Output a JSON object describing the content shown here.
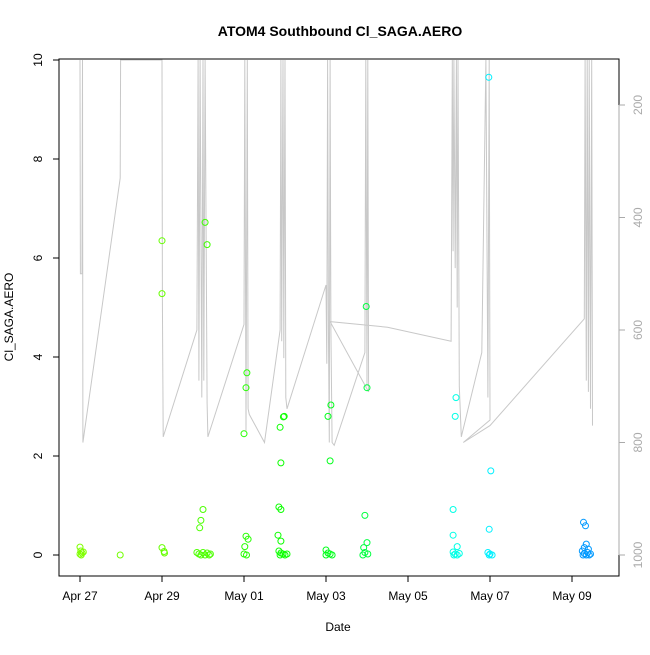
{
  "chart_data": {
    "type": "scatter",
    "title": "ATOM4 Southbound Cl_SAGA.AERO",
    "xlabel": "Date",
    "ylabel": "Cl_SAGA.AERO",
    "x_ticks": [
      "Apr 27",
      "Apr 29",
      "May 01",
      "May 03",
      "May 05",
      "May 07",
      "May 09"
    ],
    "y_ticks": [
      "0",
      "2",
      "4",
      "6",
      "8",
      "10"
    ],
    "y2_ticks": [
      "200",
      "400",
      "600",
      "800",
      "1000"
    ],
    "xlim": [
      "2018-04-26 12:00",
      "2018-05-10 05:00"
    ],
    "ylim": [
      0,
      10
    ],
    "y2lim_reversed": [
      120,
      1000
    ],
    "x_units": "days since 2018-04-27 00:00",
    "series": [
      {
        "name": "Cl_SAGA.AERO",
        "points": [
          {
            "x": 0.0,
            "y": 0.16,
            "c": "#7fff00"
          },
          {
            "x": 0.02,
            "y": 0.08,
            "c": "#7fff00"
          },
          {
            "x": 0.05,
            "y": 0.04,
            "c": "#7fff00"
          },
          {
            "x": 0.0,
            "y": 0.02,
            "c": "#7fff00"
          },
          {
            "x": 0.08,
            "y": 0.06,
            "c": "#7fff00"
          },
          {
            "x": 0.03,
            "y": 0.0,
            "c": "#7fff00"
          },
          {
            "x": 0.98,
            "y": 0.0,
            "c": "#72ff00"
          },
          {
            "x": 2.0,
            "y": 6.35,
            "c": "#66ff00"
          },
          {
            "x": 2.0,
            "y": 5.28,
            "c": "#66ff00"
          },
          {
            "x": 2.0,
            "y": 0.15,
            "c": "#66ff00"
          },
          {
            "x": 2.05,
            "y": 0.07,
            "c": "#66ff00"
          },
          {
            "x": 2.06,
            "y": 0.04,
            "c": "#66ff00"
          },
          {
            "x": 2.92,
            "y": 0.55,
            "c": "#4cff00"
          },
          {
            "x": 2.95,
            "y": 0.7,
            "c": "#4cff00"
          },
          {
            "x": 2.85,
            "y": 0.05,
            "c": "#4cff00"
          },
          {
            "x": 2.9,
            "y": 0.02,
            "c": "#4cff00"
          },
          {
            "x": 2.95,
            "y": 0.0,
            "c": "#4cff00"
          },
          {
            "x": 3.0,
            "y": 0.92,
            "c": "#4cff00"
          },
          {
            "x": 3.0,
            "y": 0.05,
            "c": "#4cff00"
          },
          {
            "x": 3.05,
            "y": 0.0,
            "c": "#4cff00"
          },
          {
            "x": 3.1,
            "y": 0.04,
            "c": "#4cff00"
          },
          {
            "x": 3.15,
            "y": 0.0,
            "c": "#4cff00"
          },
          {
            "x": 3.18,
            "y": 0.02,
            "c": "#4cff00"
          },
          {
            "x": 3.05,
            "y": 6.72,
            "c": "#40ff00"
          },
          {
            "x": 3.1,
            "y": 6.27,
            "c": "#40ff00"
          },
          {
            "x": 4.0,
            "y": 2.45,
            "c": "#26ff00"
          },
          {
            "x": 4.07,
            "y": 3.68,
            "c": "#26ff00"
          },
          {
            "x": 4.05,
            "y": 3.38,
            "c": "#26ff00"
          },
          {
            "x": 4.05,
            "y": 0.38,
            "c": "#26ff00"
          },
          {
            "x": 4.1,
            "y": 0.32,
            "c": "#26ff00"
          },
          {
            "x": 4.02,
            "y": 0.17,
            "c": "#26ff00"
          },
          {
            "x": 4.0,
            "y": 0.02,
            "c": "#26ff00"
          },
          {
            "x": 4.06,
            "y": 0.0,
            "c": "#26ff00"
          },
          {
            "x": 4.85,
            "y": 0.97,
            "c": "#0cff00"
          },
          {
            "x": 4.83,
            "y": 0.4,
            "c": "#0cff00"
          },
          {
            "x": 4.9,
            "y": 0.92,
            "c": "#0cff00"
          },
          {
            "x": 4.9,
            "y": 0.28,
            "c": "#0cff00"
          },
          {
            "x": 4.88,
            "y": 2.58,
            "c": "#0cff00"
          },
          {
            "x": 4.9,
            "y": 1.86,
            "c": "#0cff00"
          },
          {
            "x": 4.98,
            "y": 2.8,
            "c": "#0cff00"
          },
          {
            "x": 4.96,
            "y": 2.79,
            "c": "#0cff00"
          },
          {
            "x": 4.85,
            "y": 0.08,
            "c": "#0cff00"
          },
          {
            "x": 4.9,
            "y": 0.04,
            "c": "#0cff00"
          },
          {
            "x": 4.95,
            "y": 0.02,
            "c": "#0cff00"
          },
          {
            "x": 4.88,
            "y": 0.0,
            "c": "#0cff00"
          },
          {
            "x": 5.0,
            "y": 0.0,
            "c": "#0cff00"
          },
          {
            "x": 5.05,
            "y": 0.02,
            "c": "#0cff00"
          },
          {
            "x": 6.05,
            "y": 2.8,
            "c": "#00ff1a"
          },
          {
            "x": 6.12,
            "y": 3.03,
            "c": "#00ff1a"
          },
          {
            "x": 6.1,
            "y": 1.9,
            "c": "#00ff1a"
          },
          {
            "x": 6.0,
            "y": 0.1,
            "c": "#00ff1a"
          },
          {
            "x": 6.05,
            "y": 0.04,
            "c": "#00ff1a"
          },
          {
            "x": 6.0,
            "y": 0.0,
            "c": "#00ff1a"
          },
          {
            "x": 6.1,
            "y": 0.02,
            "c": "#00ff1a"
          },
          {
            "x": 6.15,
            "y": 0.0,
            "c": "#00ff1a"
          },
          {
            "x": 6.98,
            "y": 5.02,
            "c": "#00ff40"
          },
          {
            "x": 7.0,
            "y": 3.38,
            "c": "#00ff40"
          },
          {
            "x": 6.95,
            "y": 0.8,
            "c": "#00ff40"
          },
          {
            "x": 7.0,
            "y": 0.25,
            "c": "#00ff40"
          },
          {
            "x": 6.92,
            "y": 0.15,
            "c": "#00ff40"
          },
          {
            "x": 6.95,
            "y": 0.05,
            "c": "#00ff40"
          },
          {
            "x": 6.9,
            "y": 0.0,
            "c": "#00ff40"
          },
          {
            "x": 7.02,
            "y": 0.02,
            "c": "#00ff40"
          },
          {
            "x": 9.1,
            "y": 0.92,
            "c": "#00ffe6"
          },
          {
            "x": 9.1,
            "y": 0.4,
            "c": "#00ffe6"
          },
          {
            "x": 9.15,
            "y": 2.8,
            "c": "#00ffe6"
          },
          {
            "x": 9.17,
            "y": 3.18,
            "c": "#00ffe6"
          },
          {
            "x": 9.2,
            "y": 0.17,
            "c": "#00ffe6"
          },
          {
            "x": 9.1,
            "y": 0.06,
            "c": "#00ffe6"
          },
          {
            "x": 9.15,
            "y": 0.02,
            "c": "#00ffe6"
          },
          {
            "x": 9.2,
            "y": 0.0,
            "c": "#00ffe6"
          },
          {
            "x": 9.25,
            "y": 0.03,
            "c": "#00ffe6"
          },
          {
            "x": 9.12,
            "y": 0.0,
            "c": "#00ffe6"
          },
          {
            "x": 9.97,
            "y": 9.65,
            "c": "#00f0ff"
          },
          {
            "x": 10.02,
            "y": 1.7,
            "c": "#00f0ff"
          },
          {
            "x": 9.98,
            "y": 0.52,
            "c": "#00f0ff"
          },
          {
            "x": 9.95,
            "y": 0.05,
            "c": "#00f0ff"
          },
          {
            "x": 10.0,
            "y": 0.02,
            "c": "#00f0ff"
          },
          {
            "x": 10.05,
            "y": 0.0,
            "c": "#00f0ff"
          },
          {
            "x": 9.98,
            "y": 0.0,
            "c": "#00f0ff"
          },
          {
            "x": 12.28,
            "y": 0.66,
            "c": "#0099ff"
          },
          {
            "x": 12.33,
            "y": 0.59,
            "c": "#0099ff"
          },
          {
            "x": 12.35,
            "y": 0.22,
            "c": "#0099ff"
          },
          {
            "x": 12.3,
            "y": 0.15,
            "c": "#0099ff"
          },
          {
            "x": 12.4,
            "y": 0.12,
            "c": "#0099ff"
          },
          {
            "x": 12.25,
            "y": 0.08,
            "c": "#0099ff"
          },
          {
            "x": 12.3,
            "y": 0.03,
            "c": "#0099ff"
          },
          {
            "x": 12.38,
            "y": 0.05,
            "c": "#0099ff"
          },
          {
            "x": 12.42,
            "y": 0.0,
            "c": "#0099ff"
          },
          {
            "x": 12.27,
            "y": 0.0,
            "c": "#0099ff"
          },
          {
            "x": 12.35,
            "y": 0.0,
            "c": "#0099ff"
          },
          {
            "x": 12.45,
            "y": 0.02,
            "c": "#0099ff"
          }
        ]
      }
    ],
    "altitude_trace": {
      "color": "#c8c8c8",
      "points": [
        [
          0.0,
          120
        ],
        [
          0.01,
          500
        ],
        [
          0.05,
          500
        ],
        [
          0.06,
          120
        ],
        [
          0.07,
          800
        ],
        [
          0.98,
          330
        ],
        [
          0.99,
          120
        ],
        [
          2.0,
          120
        ],
        [
          2.01,
          550
        ],
        [
          2.03,
          790
        ],
        [
          2.85,
          600
        ],
        [
          2.88,
          120
        ],
        [
          2.9,
          690
        ],
        [
          2.93,
          120
        ],
        [
          2.97,
          720
        ],
        [
          3.0,
          120
        ],
        [
          3.02,
          690
        ],
        [
          3.05,
          120
        ],
        [
          3.1,
          730
        ],
        [
          3.12,
          790
        ],
        [
          4.0,
          590
        ],
        [
          4.02,
          120
        ],
        [
          4.05,
          780
        ],
        [
          4.08,
          120
        ],
        [
          4.1,
          740
        ],
        [
          4.13,
          750
        ],
        [
          4.5,
          800
        ],
        [
          4.88,
          600
        ],
        [
          4.9,
          120
        ],
        [
          4.92,
          620
        ],
        [
          4.95,
          120
        ],
        [
          4.97,
          650
        ],
        [
          5.0,
          120
        ],
        [
          5.02,
          720
        ],
        [
          5.05,
          740
        ],
        [
          6.0,
          520
        ],
        [
          6.02,
          660
        ],
        [
          6.04,
          120
        ],
        [
          6.06,
          620
        ],
        [
          6.08,
          800
        ],
        [
          6.1,
          120
        ],
        [
          6.12,
          600
        ],
        [
          6.15,
          800
        ],
        [
          6.2,
          805
        ],
        [
          6.95,
          640
        ],
        [
          6.97,
          120
        ],
        [
          7.0,
          700
        ],
        [
          7.02,
          120
        ],
        [
          7.04,
          710
        ],
        [
          6.1,
          585
        ],
        [
          7.5,
          595
        ],
        [
          9.05,
          620
        ],
        [
          9.08,
          120
        ],
        [
          9.1,
          460
        ],
        [
          9.12,
          120
        ],
        [
          9.15,
          490
        ],
        [
          9.18,
          120
        ],
        [
          9.2,
          560
        ],
        [
          9.22,
          120
        ],
        [
          9.25,
          700
        ],
        [
          9.3,
          790
        ],
        [
          9.8,
          640
        ],
        [
          9.9,
          120
        ],
        [
          9.95,
          720
        ],
        [
          9.98,
          120
        ],
        [
          10.0,
          760
        ],
        [
          9.35,
          800
        ],
        [
          10.0,
          770
        ],
        [
          12.3,
          580
        ],
        [
          12.32,
          120
        ],
        [
          12.35,
          690
        ],
        [
          12.37,
          120
        ],
        [
          12.4,
          710
        ],
        [
          12.42,
          120
        ],
        [
          12.45,
          740
        ],
        [
          12.48,
          120
        ],
        [
          12.5,
          770
        ]
      ]
    }
  }
}
